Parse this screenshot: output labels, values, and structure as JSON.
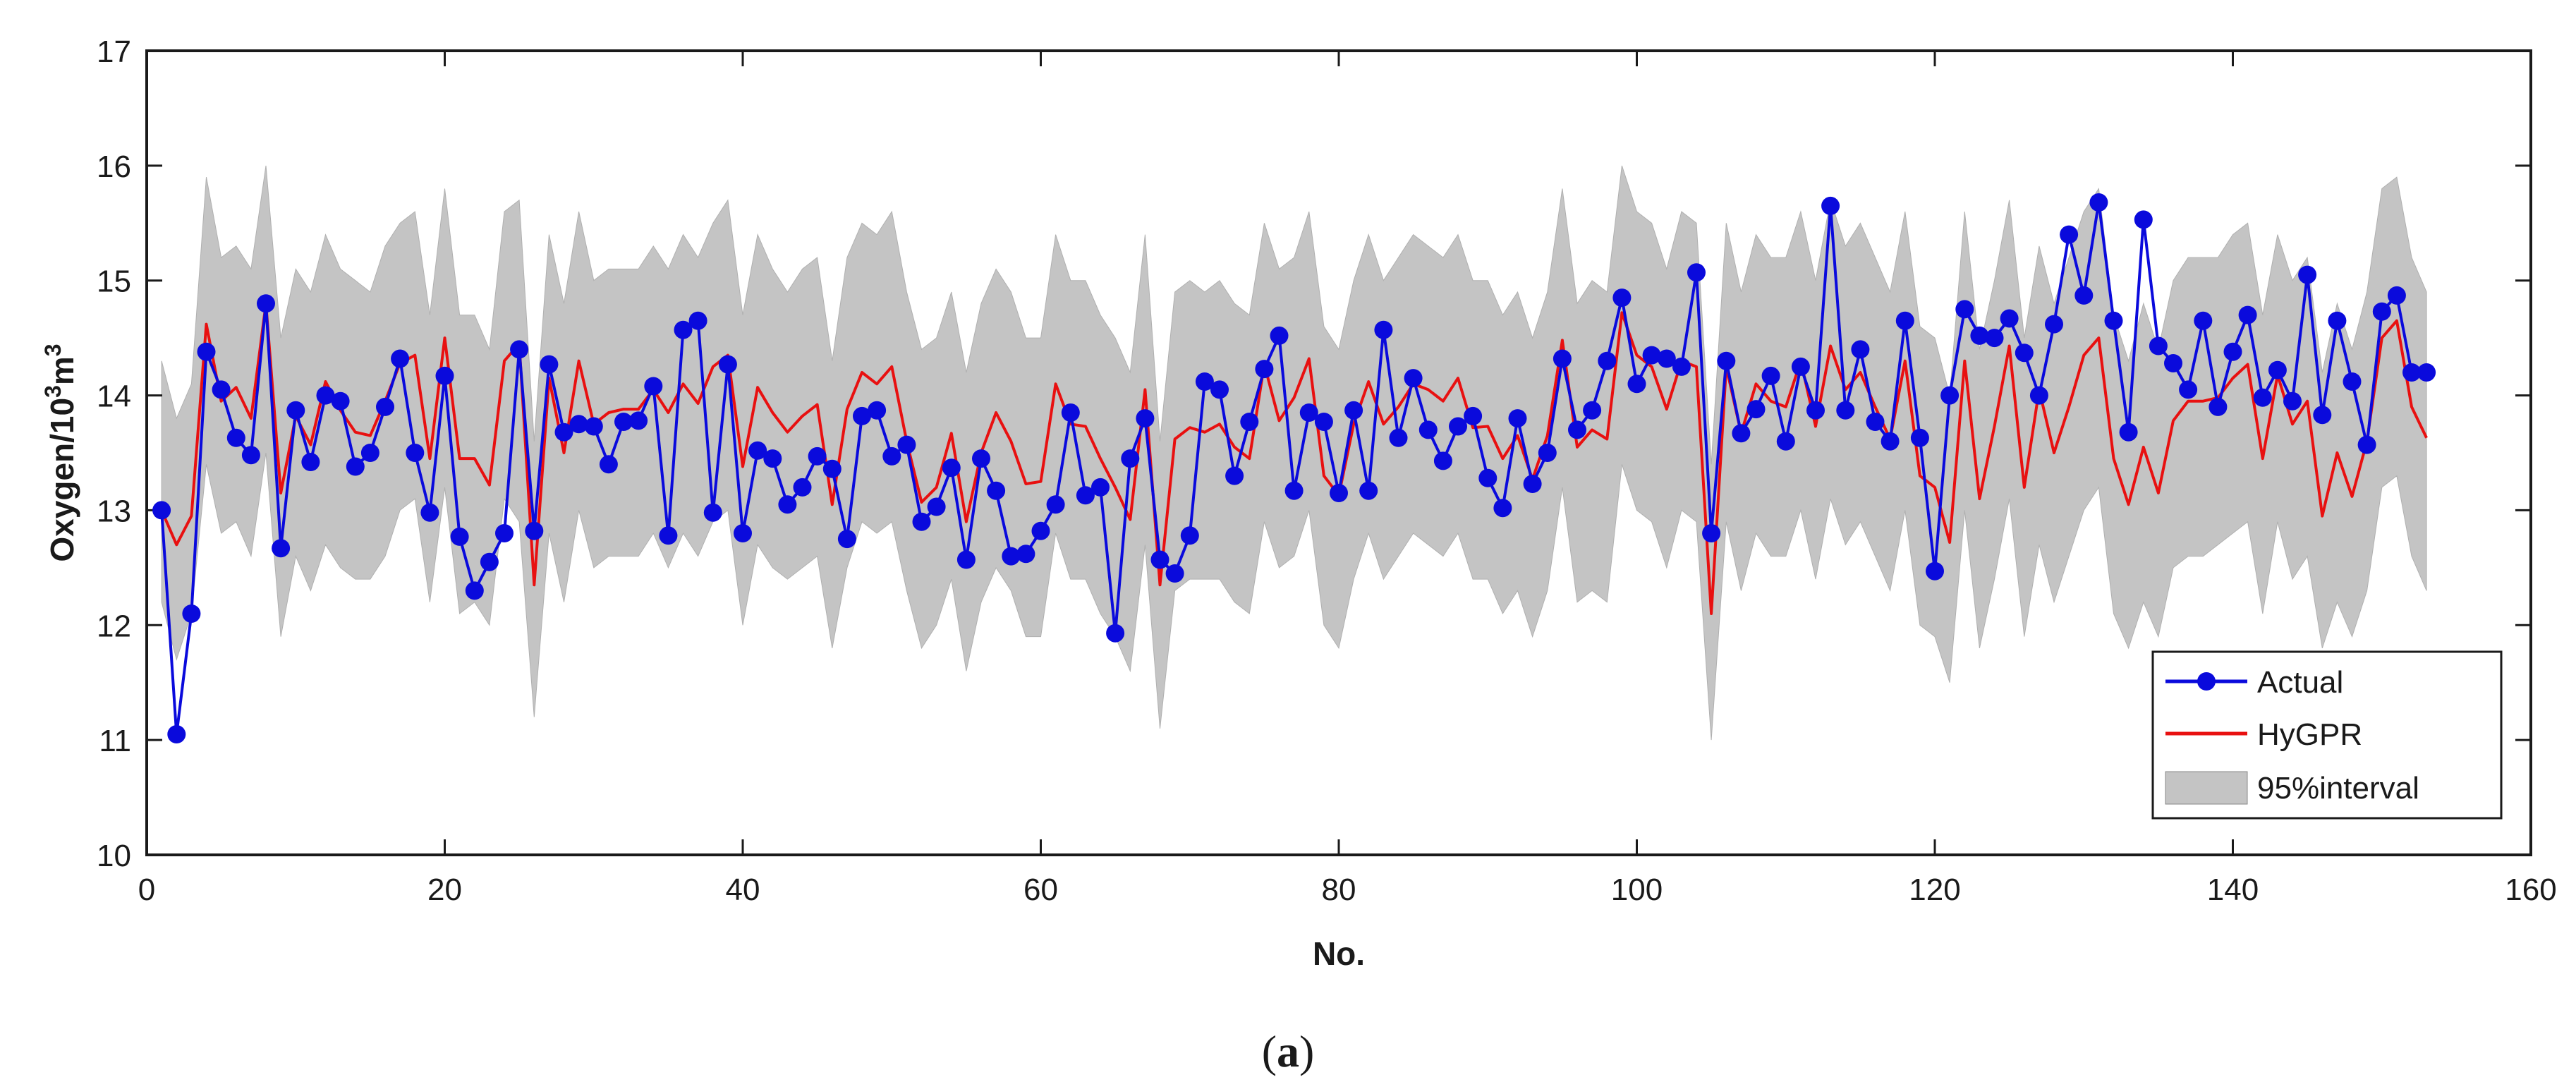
{
  "chart_data": {
    "type": "line",
    "title": "",
    "xlabel": "No.",
    "ylabel_base": "Oxygen/10",
    "ylabel_sup1": "3",
    "ylabel_mid": "m",
    "ylabel_sup2": "3",
    "xlim": [
      0,
      160
    ],
    "ylim": [
      10,
      17
    ],
    "xticks": [
      0,
      20,
      40,
      60,
      80,
      100,
      120,
      140,
      160
    ],
    "yticks": [
      10,
      11,
      12,
      13,
      14,
      15,
      16,
      17
    ],
    "xtick_labels": [
      "0",
      "20",
      "40",
      "60",
      "80",
      "100",
      "120",
      "140",
      "160"
    ],
    "ytick_labels": [
      "10",
      "11",
      "12",
      "13",
      "14",
      "15",
      "16",
      "17"
    ],
    "legend_position": "bottom-right",
    "caption_open": "(",
    "caption_letter": "a",
    "caption_close": ")",
    "colors": {
      "actual": "#0a0adc",
      "predicted": "#e81010",
      "interval": "#c4c4c4"
    },
    "series": [
      {
        "name": "Actual",
        "style": "line-marker",
        "x": [
          1,
          2,
          3,
          4,
          5,
          6,
          7,
          8,
          9,
          10,
          11,
          12,
          13,
          14,
          15,
          16,
          17,
          18,
          19,
          20,
          21,
          22,
          23,
          24,
          25,
          26,
          27,
          28,
          29,
          30,
          31,
          32,
          33,
          34,
          35,
          36,
          37,
          38,
          39,
          40,
          41,
          42,
          43,
          44,
          45,
          46,
          47,
          48,
          49,
          50,
          51,
          52,
          53,
          54,
          55,
          56,
          57,
          58,
          59,
          60,
          61,
          62,
          63,
          64,
          65,
          66,
          67,
          68,
          69,
          70,
          71,
          72,
          73,
          74,
          75,
          76,
          77,
          78,
          79,
          80,
          81,
          82,
          83,
          84,
          85,
          86,
          87,
          88,
          89,
          90,
          91,
          92,
          93,
          94,
          95,
          96,
          97,
          98,
          99,
          100,
          101,
          102,
          103,
          104,
          105,
          106,
          107,
          108,
          109,
          110,
          111,
          112,
          113,
          114,
          115,
          116,
          117,
          118,
          119,
          120,
          121,
          122,
          123,
          124,
          125,
          126,
          127,
          128,
          129,
          130,
          131,
          132,
          133,
          134,
          135,
          136,
          137,
          138,
          139,
          140,
          141,
          142,
          143,
          144,
          145,
          146,
          147,
          148,
          149,
          150,
          151,
          152,
          153
        ],
        "values": [
          13.0,
          11.05,
          12.1,
          14.38,
          14.05,
          13.63,
          13.48,
          14.8,
          12.67,
          13.87,
          13.42,
          14.0,
          13.95,
          13.38,
          13.5,
          13.9,
          14.32,
          13.5,
          12.98,
          14.17,
          12.77,
          12.3,
          12.55,
          12.8,
          14.4,
          12.82,
          14.27,
          13.68,
          13.75,
          13.73,
          13.4,
          13.77,
          13.78,
          14.08,
          12.78,
          14.57,
          14.65,
          12.98,
          14.27,
          12.8,
          13.52,
          13.45,
          13.05,
          13.2,
          13.47,
          13.36,
          12.75,
          13.82,
          13.87,
          13.47,
          13.57,
          12.9,
          13.03,
          13.37,
          12.57,
          13.45,
          13.17,
          12.6,
          12.62,
          12.82,
          13.05,
          13.85,
          13.13,
          13.2,
          11.93,
          13.45,
          13.8,
          12.57,
          12.45,
          12.78,
          14.12,
          14.05,
          13.3,
          13.77,
          14.23,
          14.52,
          13.17,
          13.85,
          13.77,
          13.15,
          13.87,
          13.17,
          14.57,
          13.63,
          14.15,
          13.7,
          13.43,
          13.73,
          13.82,
          13.28,
          13.02,
          13.8,
          13.23,
          13.5,
          14.32,
          13.7,
          13.87,
          14.3,
          14.85,
          14.1,
          14.35,
          14.32,
          14.25,
          15.07,
          12.8,
          14.3,
          13.67,
          13.88,
          14.17,
          13.6,
          14.25,
          13.87,
          15.65,
          13.87,
          14.4,
          13.77,
          13.6,
          14.65,
          13.63,
          12.47,
          14.0,
          14.75,
          14.52,
          14.5,
          14.67,
          14.37,
          14.0,
          14.62,
          15.4,
          14.87,
          15.68,
          14.65,
          13.68,
          15.53,
          14.43,
          14.28,
          14.05,
          14.65,
          13.9,
          14.38,
          14.7,
          13.98,
          14.22,
          13.95,
          15.05,
          13.83,
          14.65,
          14.12,
          13.57,
          14.73,
          14.87,
          14.2,
          14.2
        ]
      },
      {
        "name": "HyGPR",
        "style": "line",
        "x": [
          1,
          2,
          3,
          4,
          5,
          6,
          7,
          8,
          9,
          10,
          11,
          12,
          13,
          14,
          15,
          16,
          17,
          18,
          19,
          20,
          21,
          22,
          23,
          24,
          25,
          26,
          27,
          28,
          29,
          30,
          31,
          32,
          33,
          34,
          35,
          36,
          37,
          38,
          39,
          40,
          41,
          42,
          43,
          44,
          45,
          46,
          47,
          48,
          49,
          50,
          51,
          52,
          53,
          54,
          55,
          56,
          57,
          58,
          59,
          60,
          61,
          62,
          63,
          64,
          65,
          66,
          67,
          68,
          69,
          70,
          71,
          72,
          73,
          74,
          75,
          76,
          77,
          78,
          79,
          80,
          81,
          82,
          83,
          84,
          85,
          86,
          87,
          88,
          89,
          90,
          91,
          92,
          93,
          94,
          95,
          96,
          97,
          98,
          99,
          100,
          101,
          102,
          103,
          104,
          105,
          106,
          107,
          108,
          109,
          110,
          111,
          112,
          113,
          114,
          115,
          116,
          117,
          118,
          119,
          120,
          121,
          122,
          123,
          124,
          125,
          126,
          127,
          128,
          129,
          130,
          131,
          132,
          133,
          134,
          135,
          136,
          137,
          138,
          139,
          140,
          141,
          142,
          143,
          144,
          145,
          146,
          147,
          148,
          149,
          150,
          151,
          152,
          153
        ],
        "values": [
          13.0,
          12.7,
          12.95,
          14.62,
          13.95,
          14.07,
          13.8,
          14.8,
          13.15,
          13.82,
          13.57,
          14.12,
          13.87,
          13.68,
          13.65,
          13.95,
          14.28,
          14.35,
          13.45,
          14.5,
          13.45,
          13.45,
          13.22,
          14.3,
          14.45,
          12.35,
          14.15,
          13.5,
          14.3,
          13.75,
          13.85,
          13.88,
          13.88,
          14.05,
          13.85,
          14.1,
          13.93,
          14.25,
          14.35,
          13.38,
          14.07,
          13.85,
          13.68,
          13.82,
          13.92,
          13.05,
          13.88,
          14.2,
          14.1,
          14.25,
          13.6,
          13.07,
          13.2,
          13.67,
          12.9,
          13.5,
          13.85,
          13.6,
          13.23,
          13.25,
          14.1,
          13.75,
          13.73,
          13.45,
          13.2,
          12.92,
          14.05,
          12.35,
          13.62,
          13.72,
          13.68,
          13.75,
          13.55,
          13.45,
          14.27,
          13.78,
          13.98,
          14.32,
          13.3,
          13.13,
          13.75,
          14.12,
          13.75,
          13.9,
          14.1,
          14.05,
          13.95,
          14.15,
          13.72,
          13.73,
          13.45,
          13.65,
          13.27,
          13.65,
          14.48,
          13.55,
          13.7,
          13.62,
          14.72,
          14.35,
          14.25,
          13.88,
          14.3,
          14.25,
          12.1,
          14.25,
          13.67,
          14.1,
          13.95,
          13.9,
          14.3,
          13.73,
          14.43,
          14.05,
          14.2,
          13.9,
          13.62,
          14.3,
          13.3,
          13.2,
          12.72,
          14.3,
          13.1,
          13.73,
          14.43,
          13.2,
          14.05,
          13.5,
          13.9,
          14.35,
          14.5,
          13.45,
          13.05,
          13.55,
          13.15,
          13.78,
          13.95,
          13.95,
          13.98,
          14.15,
          14.27,
          13.45,
          14.18,
          13.75,
          13.95,
          12.95,
          13.5,
          13.12,
          13.6,
          14.5,
          14.65,
          13.9,
          13.63
        ]
      },
      {
        "name": "95%interval",
        "style": "band",
        "x": [
          1,
          2,
          3,
          4,
          5,
          6,
          7,
          8,
          9,
          10,
          11,
          12,
          13,
          14,
          15,
          16,
          17,
          18,
          19,
          20,
          21,
          22,
          23,
          24,
          25,
          26,
          27,
          28,
          29,
          30,
          31,
          32,
          33,
          34,
          35,
          36,
          37,
          38,
          39,
          40,
          41,
          42,
          43,
          44,
          45,
          46,
          47,
          48,
          49,
          50,
          51,
          52,
          53,
          54,
          55,
          56,
          57,
          58,
          59,
          60,
          61,
          62,
          63,
          64,
          65,
          66,
          67,
          68,
          69,
          70,
          71,
          72,
          73,
          74,
          75,
          76,
          77,
          78,
          79,
          80,
          81,
          82,
          83,
          84,
          85,
          86,
          87,
          88,
          89,
          90,
          91,
          92,
          93,
          94,
          95,
          96,
          97,
          98,
          99,
          100,
          101,
          102,
          103,
          104,
          105,
          106,
          107,
          108,
          109,
          110,
          111,
          112,
          113,
          114,
          115,
          116,
          117,
          118,
          119,
          120,
          121,
          122,
          123,
          124,
          125,
          126,
          127,
          128,
          129,
          130,
          131,
          132,
          133,
          134,
          135,
          136,
          137,
          138,
          139,
          140,
          141,
          142,
          143,
          144,
          145,
          146,
          147,
          148,
          149,
          150,
          151,
          152,
          153
        ],
        "lower": [
          12.2,
          11.7,
          12.1,
          13.4,
          12.8,
          12.9,
          12.6,
          13.5,
          11.9,
          12.6,
          12.3,
          12.7,
          12.5,
          12.4,
          12.4,
          12.6,
          13.0,
          13.1,
          12.2,
          13.2,
          12.1,
          12.2,
          12.0,
          13.1,
          12.9,
          11.2,
          12.8,
          12.2,
          13.0,
          12.5,
          12.6,
          12.6,
          12.6,
          12.8,
          12.5,
          12.8,
          12.6,
          12.9,
          13.0,
          12.0,
          12.7,
          12.5,
          12.4,
          12.5,
          12.6,
          11.8,
          12.5,
          12.9,
          12.8,
          12.9,
          12.3,
          11.8,
          12.0,
          12.4,
          11.6,
          12.2,
          12.5,
          12.3,
          11.9,
          11.9,
          12.8,
          12.4,
          12.4,
          12.1,
          11.9,
          11.6,
          12.7,
          11.1,
          12.3,
          12.4,
          12.4,
          12.4,
          12.2,
          12.1,
          12.9,
          12.5,
          12.6,
          13.0,
          12.0,
          11.8,
          12.4,
          12.8,
          12.4,
          12.6,
          12.8,
          12.7,
          12.6,
          12.8,
          12.4,
          12.4,
          12.1,
          12.3,
          11.9,
          12.3,
          13.2,
          12.2,
          12.3,
          12.2,
          13.4,
          13.0,
          12.9,
          12.5,
          13.0,
          12.9,
          11.0,
          12.9,
          12.3,
          12.8,
          12.6,
          12.6,
          13.0,
          12.4,
          13.1,
          12.7,
          12.9,
          12.6,
          12.3,
          13.0,
          12.0,
          11.9,
          11.5,
          13.0,
          11.8,
          12.4,
          13.1,
          11.9,
          12.7,
          12.2,
          12.6,
          13.0,
          13.2,
          12.1,
          11.8,
          12.2,
          11.9,
          12.5,
          12.6,
          12.6,
          12.7,
          12.8,
          12.9,
          12.1,
          12.9,
          12.4,
          12.6,
          11.8,
          12.2,
          11.9,
          12.3,
          13.2,
          13.3,
          12.6,
          12.3
        ],
        "upper": [
          14.3,
          13.8,
          14.1,
          15.9,
          15.2,
          15.3,
          15.1,
          16.0,
          14.5,
          15.1,
          14.9,
          15.4,
          15.1,
          15.0,
          14.9,
          15.3,
          15.5,
          15.6,
          14.7,
          15.8,
          14.7,
          14.7,
          14.4,
          15.6,
          15.7,
          13.6,
          15.4,
          14.8,
          15.6,
          15.0,
          15.1,
          15.1,
          15.1,
          15.3,
          15.1,
          15.4,
          15.2,
          15.5,
          15.7,
          14.7,
          15.4,
          15.1,
          14.9,
          15.1,
          15.2,
          14.3,
          15.2,
          15.5,
          15.4,
          15.6,
          14.9,
          14.4,
          14.5,
          14.9,
          14.2,
          14.8,
          15.1,
          14.9,
          14.5,
          14.5,
          15.4,
          15.0,
          15.0,
          14.7,
          14.5,
          14.2,
          15.4,
          13.6,
          14.9,
          15.0,
          14.9,
          15.0,
          14.8,
          14.7,
          15.5,
          15.1,
          15.2,
          15.6,
          14.6,
          14.4,
          15.0,
          15.4,
          15.0,
          15.2,
          15.4,
          15.3,
          15.2,
          15.4,
          15.0,
          15.0,
          14.7,
          14.9,
          14.5,
          14.9,
          15.8,
          14.8,
          15.0,
          14.9,
          16.0,
          15.6,
          15.5,
          15.1,
          15.6,
          15.5,
          13.4,
          15.5,
          14.9,
          15.4,
          15.2,
          15.2,
          15.6,
          15.0,
          15.7,
          15.3,
          15.5,
          15.2,
          14.9,
          15.6,
          14.6,
          14.5,
          14.0,
          15.6,
          14.4,
          15.0,
          15.7,
          14.5,
          15.3,
          14.8,
          15.2,
          15.6,
          15.8,
          14.7,
          14.3,
          14.8,
          14.4,
          15.0,
          15.2,
          15.2,
          15.2,
          15.4,
          15.5,
          14.7,
          15.4,
          15.0,
          15.2,
          14.2,
          14.8,
          14.4,
          14.9,
          15.8,
          15.9,
          15.2,
          14.9
        ]
      }
    ]
  }
}
